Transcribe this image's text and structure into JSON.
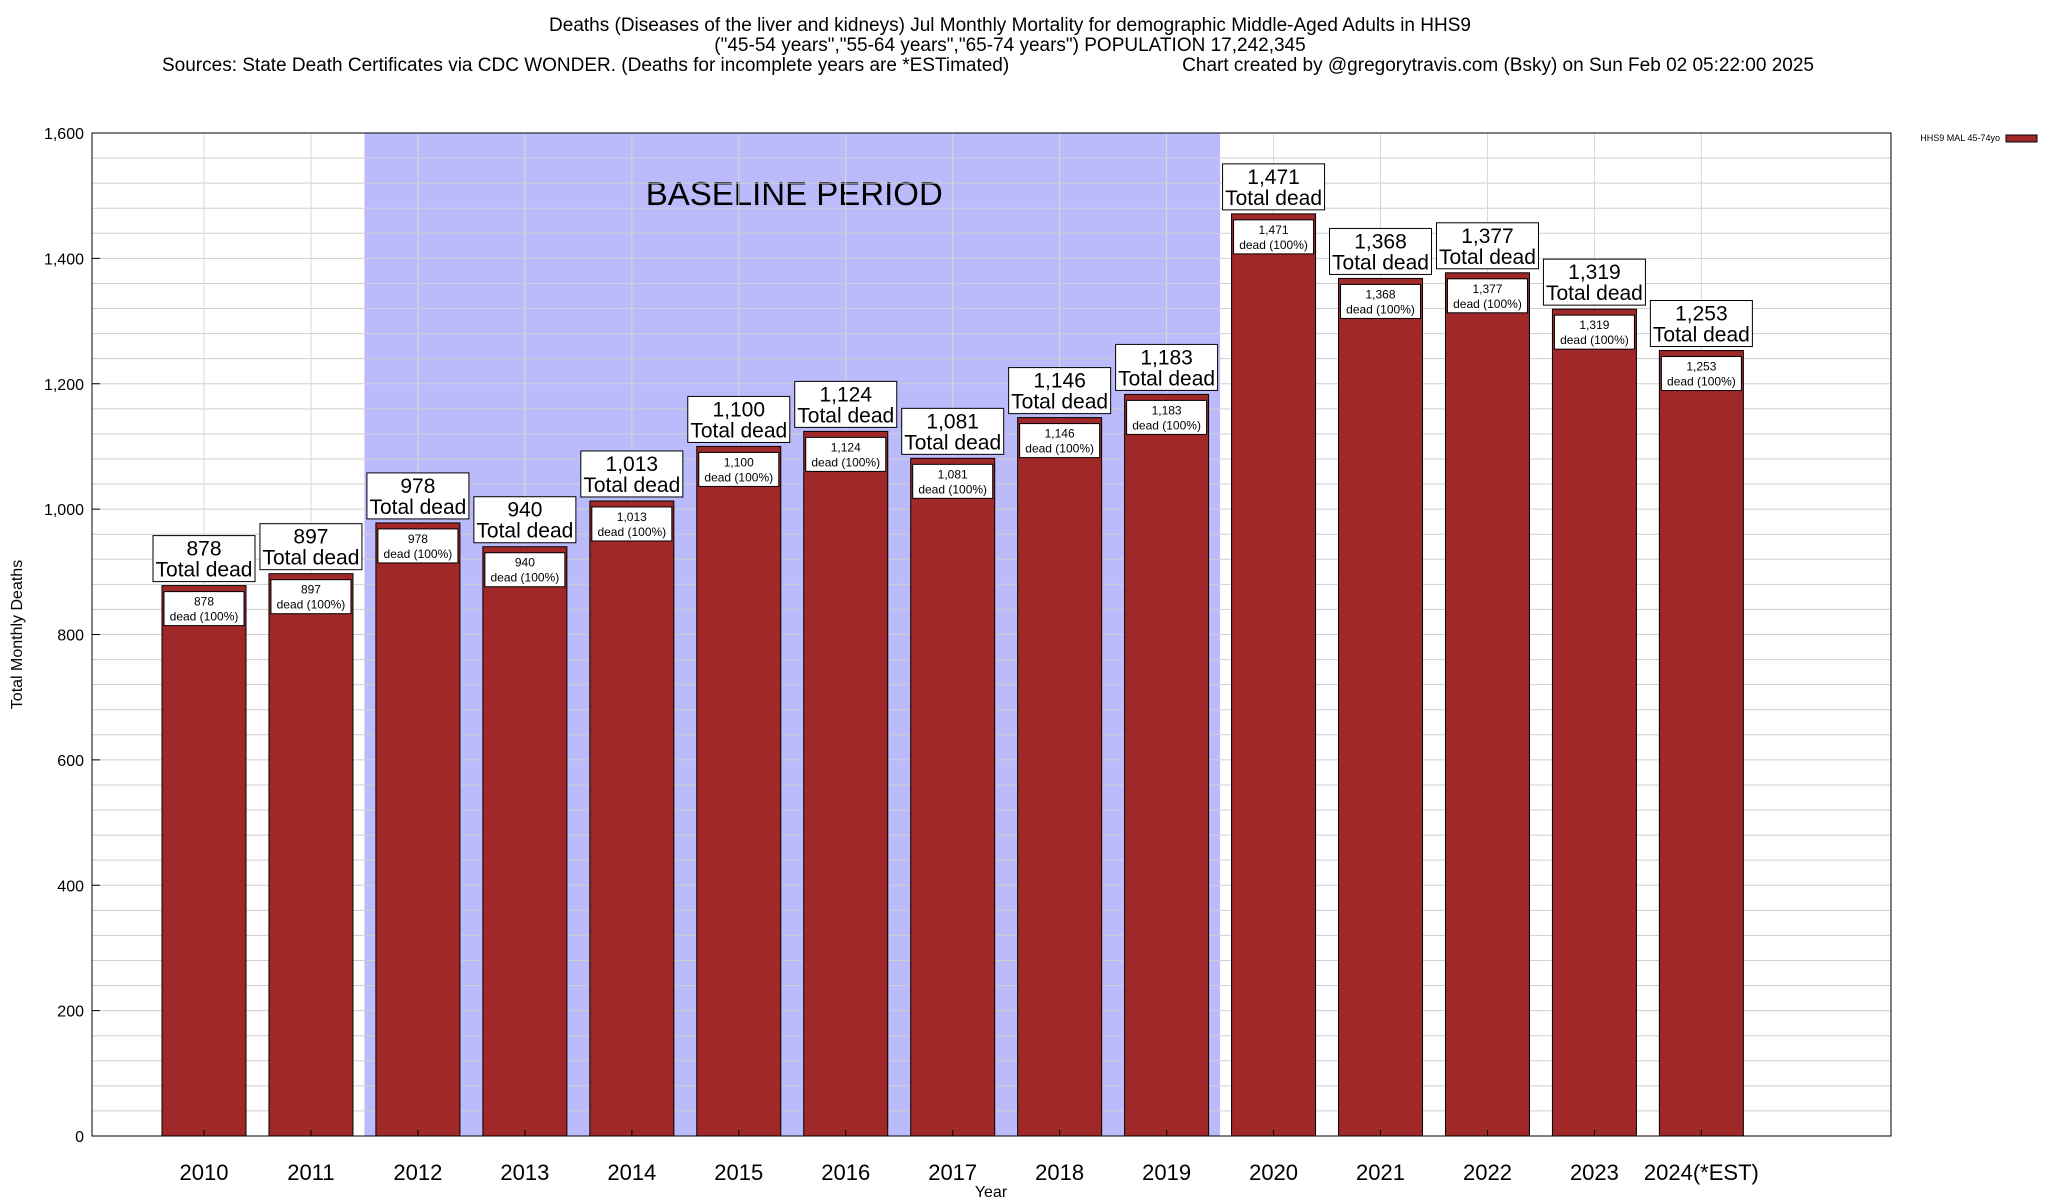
{
  "chart_data": {
    "type": "bar",
    "title_lines": [
      "Deaths (Diseases of the liver and kidneys) Jul Monthly Mortality for demographic Middle-Aged Adults in HHS9",
      "(\"45-54 years\",\"55-64 years\",\"65-74 years\") POPULATION 17,242,345",
      "Sources: State Death Certificates via CDC WONDER. (Deaths for incomplete years are *ESTimated)",
      "Chart created by @gregorytravis.com (Bsky) on Sun Feb 02 05:22:00 2025"
    ],
    "xlabel": "Year",
    "ylabel": "Total Monthly Deaths",
    "ylim": [
      0,
      1600
    ],
    "y_ticks": [
      0,
      200,
      400,
      600,
      800,
      1000,
      1200,
      1400,
      1600
    ],
    "y_tick_labels": [
      "0",
      "200",
      "400",
      "600",
      "800",
      "1,000",
      "1,200",
      "1,400",
      "1,600"
    ],
    "y_minor_step": 40,
    "grid": true,
    "categories": [
      "2010",
      "2011",
      "2012",
      "2013",
      "2014",
      "2015",
      "2016",
      "2017",
      "2018",
      "2019",
      "2020",
      "2021",
      "2022",
      "2023",
      "2024(*EST)"
    ],
    "series": [
      {
        "name": "HHS9 MAL 45-74yo",
        "color": "#a02828",
        "values": [
          878,
          897,
          978,
          940,
          1013,
          1100,
          1124,
          1081,
          1146,
          1183,
          1471,
          1368,
          1377,
          1319,
          1253
        ]
      }
    ],
    "value_labels": [
      "878",
      "897",
      "978",
      "940",
      "1,013",
      "1,100",
      "1,124",
      "1,081",
      "1,146",
      "1,183",
      "1,471",
      "1,368",
      "1,377",
      "1,319",
      "1,253"
    ],
    "total_label_suffix": "Total dead",
    "segment_label_suffix": "dead (100%)",
    "baseline_period": {
      "label": "BASELINE PERIOD",
      "start_category": "2012",
      "end_category": "2019",
      "color": "#bbbbfb"
    },
    "legend_placement": "top-right"
  }
}
